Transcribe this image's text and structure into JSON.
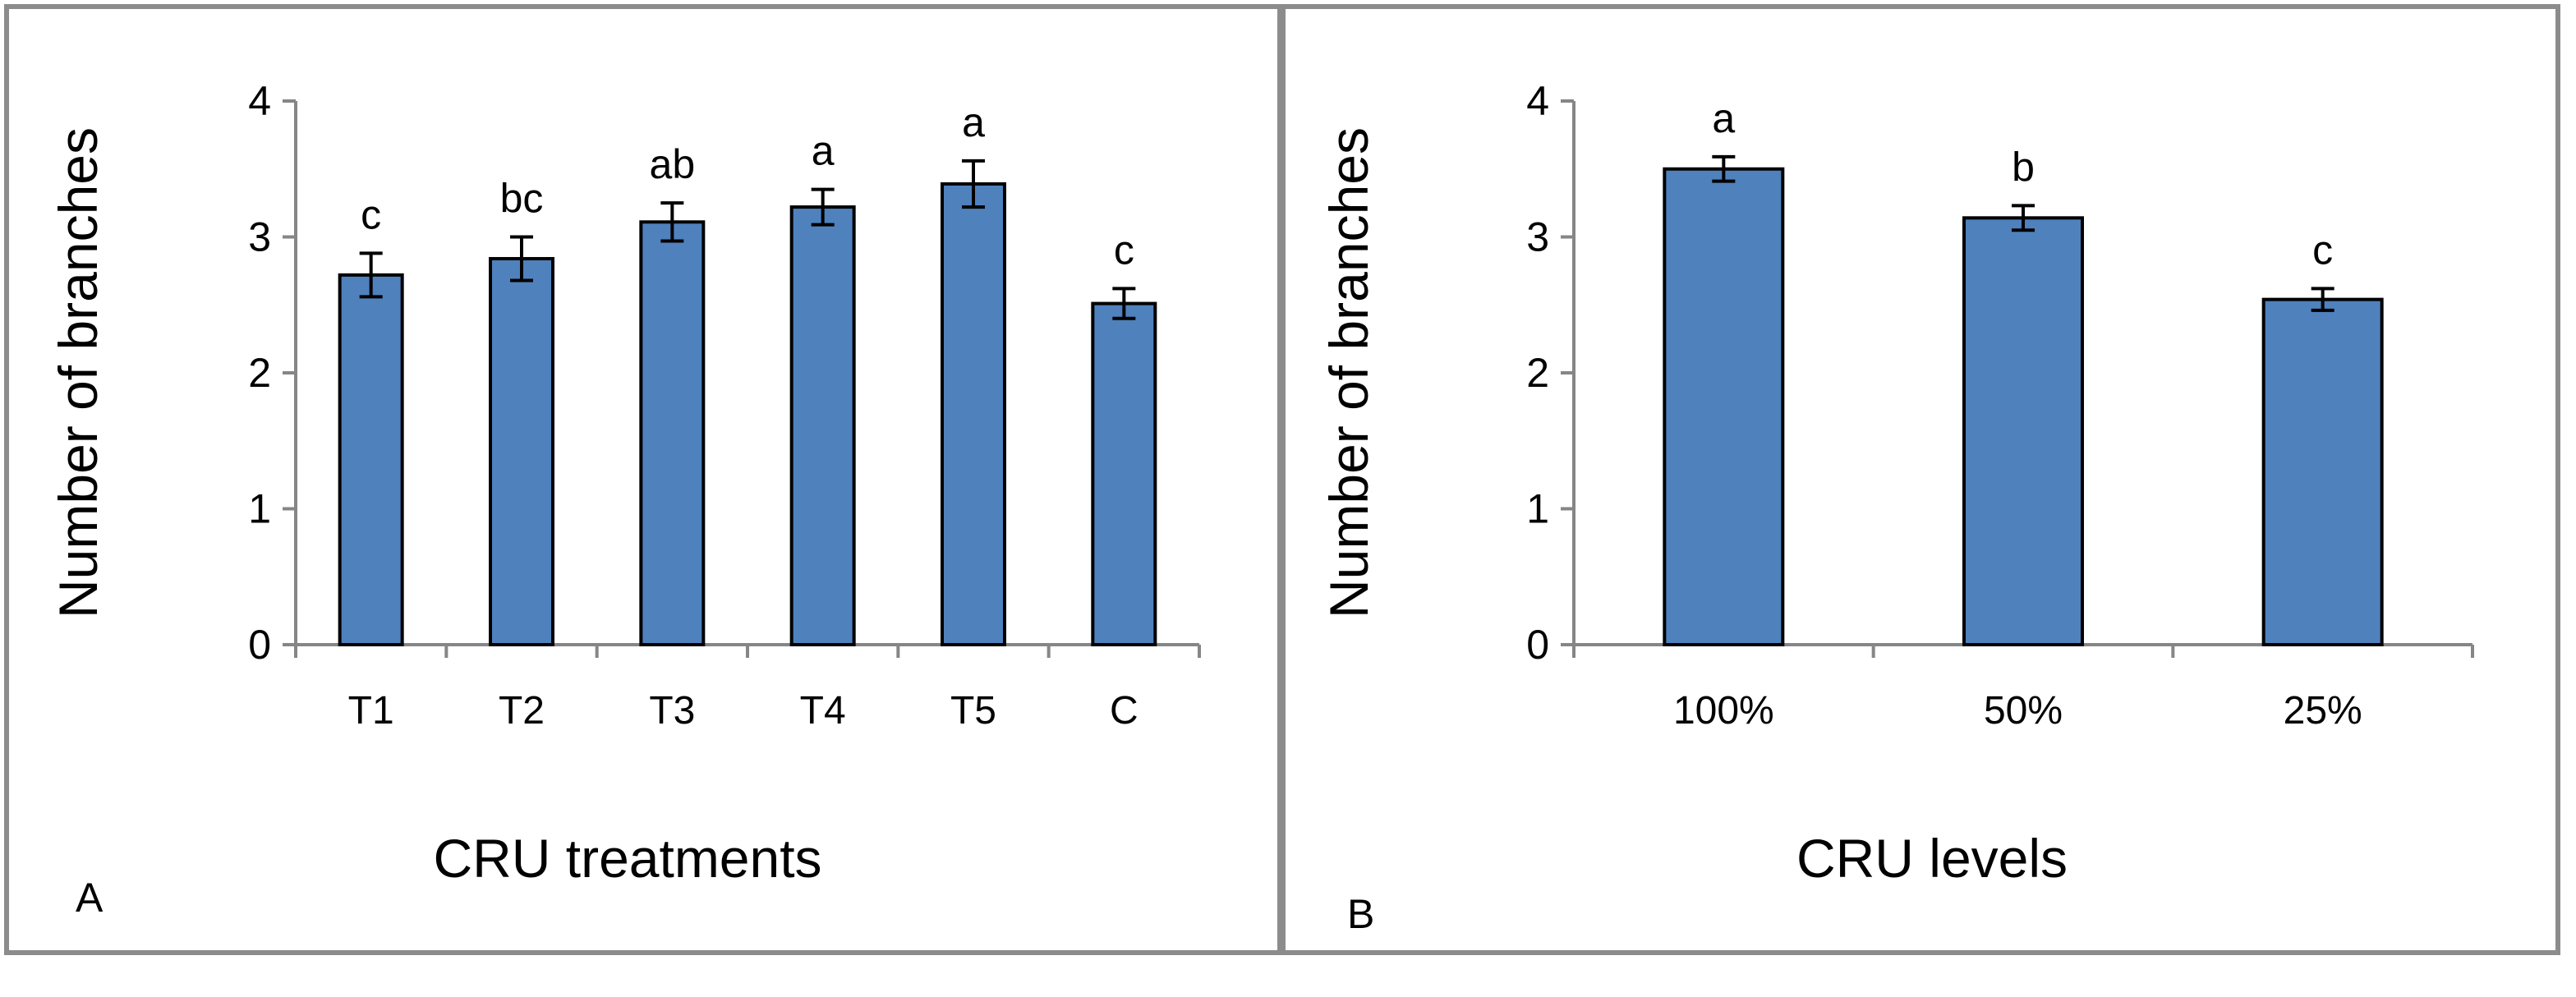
{
  "chart_data": [
    {
      "type": "bar",
      "panel": "A",
      "title": "",
      "xlabel": "CRU treatments",
      "ylabel": "Number of branches",
      "categories": [
        "T1",
        "T2",
        "T3",
        "T4",
        "T5",
        "C"
      ],
      "values": [
        2.72,
        2.84,
        3.11,
        3.22,
        3.39,
        2.51
      ],
      "errors": [
        0.16,
        0.16,
        0.14,
        0.13,
        0.17,
        0.11
      ],
      "significance": [
        "c",
        "bc",
        "ab",
        "a",
        "a",
        "c"
      ],
      "ylim": [
        0,
        4
      ],
      "yticks": [
        "0",
        "1",
        "2",
        "3",
        "4"
      ],
      "grid": false,
      "color": "#4f81bd"
    },
    {
      "type": "bar",
      "panel": "B",
      "title": "",
      "xlabel": "CRU levels",
      "ylabel": "Number of branches",
      "categories": [
        "100%",
        "50%",
        "25%"
      ],
      "values": [
        3.5,
        3.14,
        2.54
      ],
      "errors": [
        0.09,
        0.09,
        0.08
      ],
      "significance": [
        "a",
        "b",
        "c"
      ],
      "ylim": [
        0,
        4
      ],
      "yticks": [
        "0",
        "1",
        "2",
        "3",
        "4"
      ],
      "grid": false,
      "color": "#4f81bd"
    }
  ]
}
